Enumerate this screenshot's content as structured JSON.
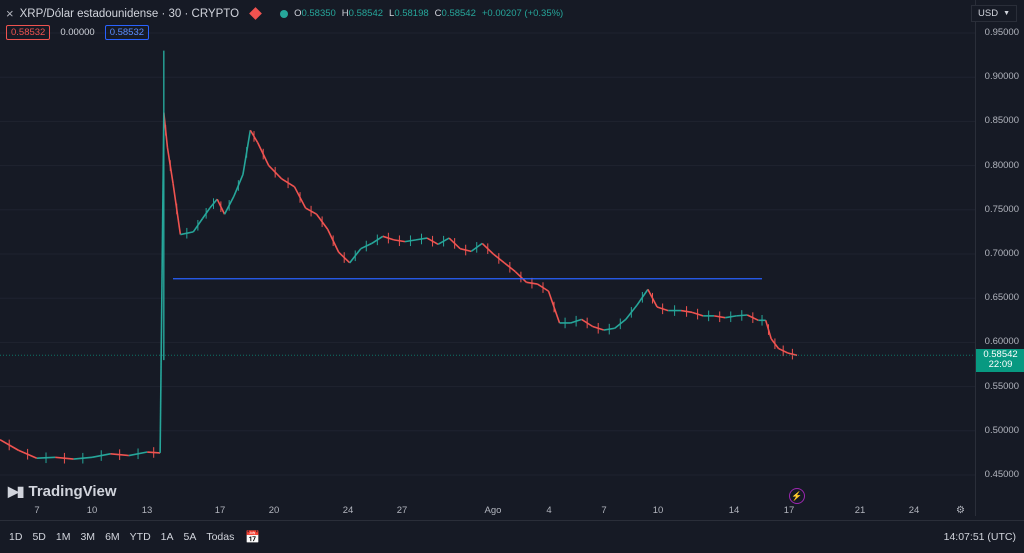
{
  "header": {
    "close_icon": "×",
    "title": "XRP/Dólar estadounidense · 30 · CRYPTO",
    "ohlc": [
      {
        "k": "O",
        "v": "0.58350"
      },
      {
        "k": "H",
        "v": "0.58542"
      },
      {
        "k": "L",
        "v": "0.58198"
      },
      {
        "k": "C",
        "v": "0.58542"
      }
    ],
    "change": "+0.00207 (+0.35%)",
    "values": [
      "0.58532",
      "0.00000",
      "0.58532"
    ]
  },
  "currency": "USD",
  "price_scale": {
    "ticks": [
      "0.95000",
      "0.90000",
      "0.85000",
      "0.80000",
      "0.75000",
      "0.70000",
      "0.65000",
      "0.60000",
      "0.55000",
      "0.50000",
      "0.45000"
    ],
    "last_price": "0.58542",
    "countdown": "22:09"
  },
  "time_axis": [
    "7",
    "10",
    "13",
    "17",
    "20",
    "24",
    "27",
    "Ago",
    "4",
    "7",
    "10",
    "14",
    "17",
    "21",
    "24"
  ],
  "branding": "TradingView",
  "timeframes": [
    "1D",
    "5D",
    "1M",
    "3M",
    "6M",
    "YTD",
    "1A",
    "5A",
    "Todas"
  ],
  "clock": "14:07:51 (UTC)",
  "colors": {
    "up": "#26a69a",
    "down": "#ef5350",
    "hline": "#2962ff",
    "background": "#161a25"
  },
  "chart_data": {
    "type": "line",
    "symbol": "XRP/Dólar estadounidense",
    "interval": "30",
    "x_labels": [
      "7",
      "10",
      "13",
      "17",
      "20",
      "24",
      "27",
      "Ago",
      "4",
      "7",
      "10",
      "14",
      "17",
      "21",
      "24"
    ],
    "close_path": [
      [
        0,
        0.49
      ],
      [
        1,
        0.478
      ],
      [
        2,
        0.469
      ],
      [
        3,
        0.47
      ],
      [
        4,
        0.468
      ],
      [
        5,
        0.47
      ],
      [
        6,
        0.474
      ],
      [
        7,
        0.472
      ],
      [
        8,
        0.476
      ],
      [
        8.7,
        0.475
      ],
      [
        8.9,
        0.86
      ],
      [
        9.1,
        0.82
      ],
      [
        9.4,
        0.78
      ],
      [
        9.8,
        0.722
      ],
      [
        10.5,
        0.725
      ],
      [
        11.0,
        0.74
      ],
      [
        11.4,
        0.752
      ],
      [
        11.8,
        0.762
      ],
      [
        12.2,
        0.745
      ],
      [
        12.7,
        0.765
      ],
      [
        13.2,
        0.79
      ],
      [
        13.6,
        0.84
      ],
      [
        14.0,
        0.826
      ],
      [
        14.6,
        0.8
      ],
      [
        15.3,
        0.785
      ],
      [
        16.0,
        0.776
      ],
      [
        16.6,
        0.752
      ],
      [
        17.2,
        0.745
      ],
      [
        17.8,
        0.728
      ],
      [
        18.4,
        0.702
      ],
      [
        19.0,
        0.69
      ],
      [
        19.6,
        0.706
      ],
      [
        20.2,
        0.712
      ],
      [
        20.8,
        0.72
      ],
      [
        21.4,
        0.716
      ],
      [
        22.0,
        0.714
      ],
      [
        22.6,
        0.716
      ],
      [
        23.2,
        0.718
      ],
      [
        23.8,
        0.711
      ],
      [
        24.4,
        0.718
      ],
      [
        25.0,
        0.706
      ],
      [
        25.6,
        0.703
      ],
      [
        26.2,
        0.712
      ],
      [
        26.8,
        0.7
      ],
      [
        27.4,
        0.69
      ],
      [
        28.0,
        0.68
      ],
      [
        28.6,
        0.668
      ],
      [
        29.2,
        0.666
      ],
      [
        29.8,
        0.658
      ],
      [
        30.4,
        0.622
      ],
      [
        31.0,
        0.622
      ],
      [
        31.6,
        0.626
      ],
      [
        32.2,
        0.618
      ],
      [
        32.8,
        0.614
      ],
      [
        33.4,
        0.616
      ],
      [
        34.0,
        0.626
      ],
      [
        34.6,
        0.642
      ],
      [
        35.2,
        0.66
      ],
      [
        35.7,
        0.64
      ],
      [
        36.3,
        0.636
      ],
      [
        37.0,
        0.636
      ],
      [
        37.6,
        0.634
      ],
      [
        38.2,
        0.63
      ],
      [
        38.8,
        0.63
      ],
      [
        39.4,
        0.628
      ],
      [
        40.0,
        0.63
      ],
      [
        40.6,
        0.631
      ],
      [
        41.2,
        0.625
      ],
      [
        41.6,
        0.625
      ],
      [
        41.9,
        0.604
      ],
      [
        42.3,
        0.593
      ],
      [
        42.8,
        0.588
      ],
      [
        43.3,
        0.5854
      ]
    ],
    "ylim": [
      0.43,
      0.97
    ],
    "horizontal_line": 0.672,
    "last_price": 0.58542
  }
}
